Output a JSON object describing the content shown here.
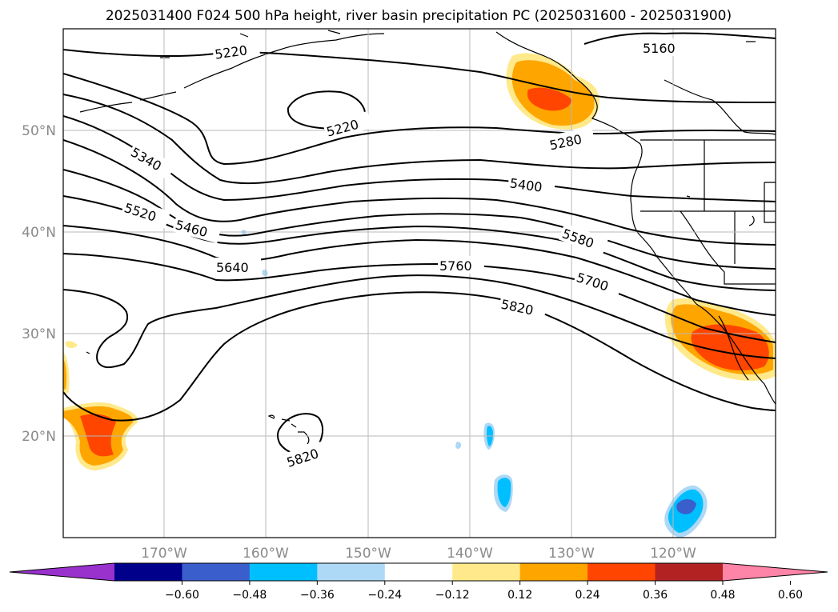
{
  "figure": {
    "title": "2025031400 F024 500 hPa height, river basin precipitation PC (2025031600 - 2025031900)"
  },
  "map": {
    "lat_labels": [
      "50°N",
      "40°N",
      "30°N",
      "20°N"
    ],
    "lon_labels": [
      "170°W",
      "160°W",
      "150°W",
      "140°W",
      "130°W",
      "120°W"
    ],
    "gridlines": true,
    "contour_labels": [
      "5160",
      "5220",
      "5220",
      "5280",
      "5340",
      "5400",
      "5460",
      "5520",
      "5580",
      "5640",
      "5700",
      "5760",
      "5820",
      "5820"
    ]
  },
  "colorbar": {
    "orientation": "horizontal",
    "extend": "both",
    "tick_labels": [
      "−0.60",
      "−0.48",
      "−0.36",
      "−0.24",
      "−0.12",
      "0.12",
      "0.24",
      "0.36",
      "0.48",
      "0.60"
    ],
    "colors": [
      "#9932cc",
      "#00008b",
      "#3a5fcd",
      "#00bfff",
      "#add8f6",
      "#ffffff",
      "#ffe98a",
      "#ffa500",
      "#ff4500",
      "#b22222",
      "#ff85a8"
    ]
  }
}
